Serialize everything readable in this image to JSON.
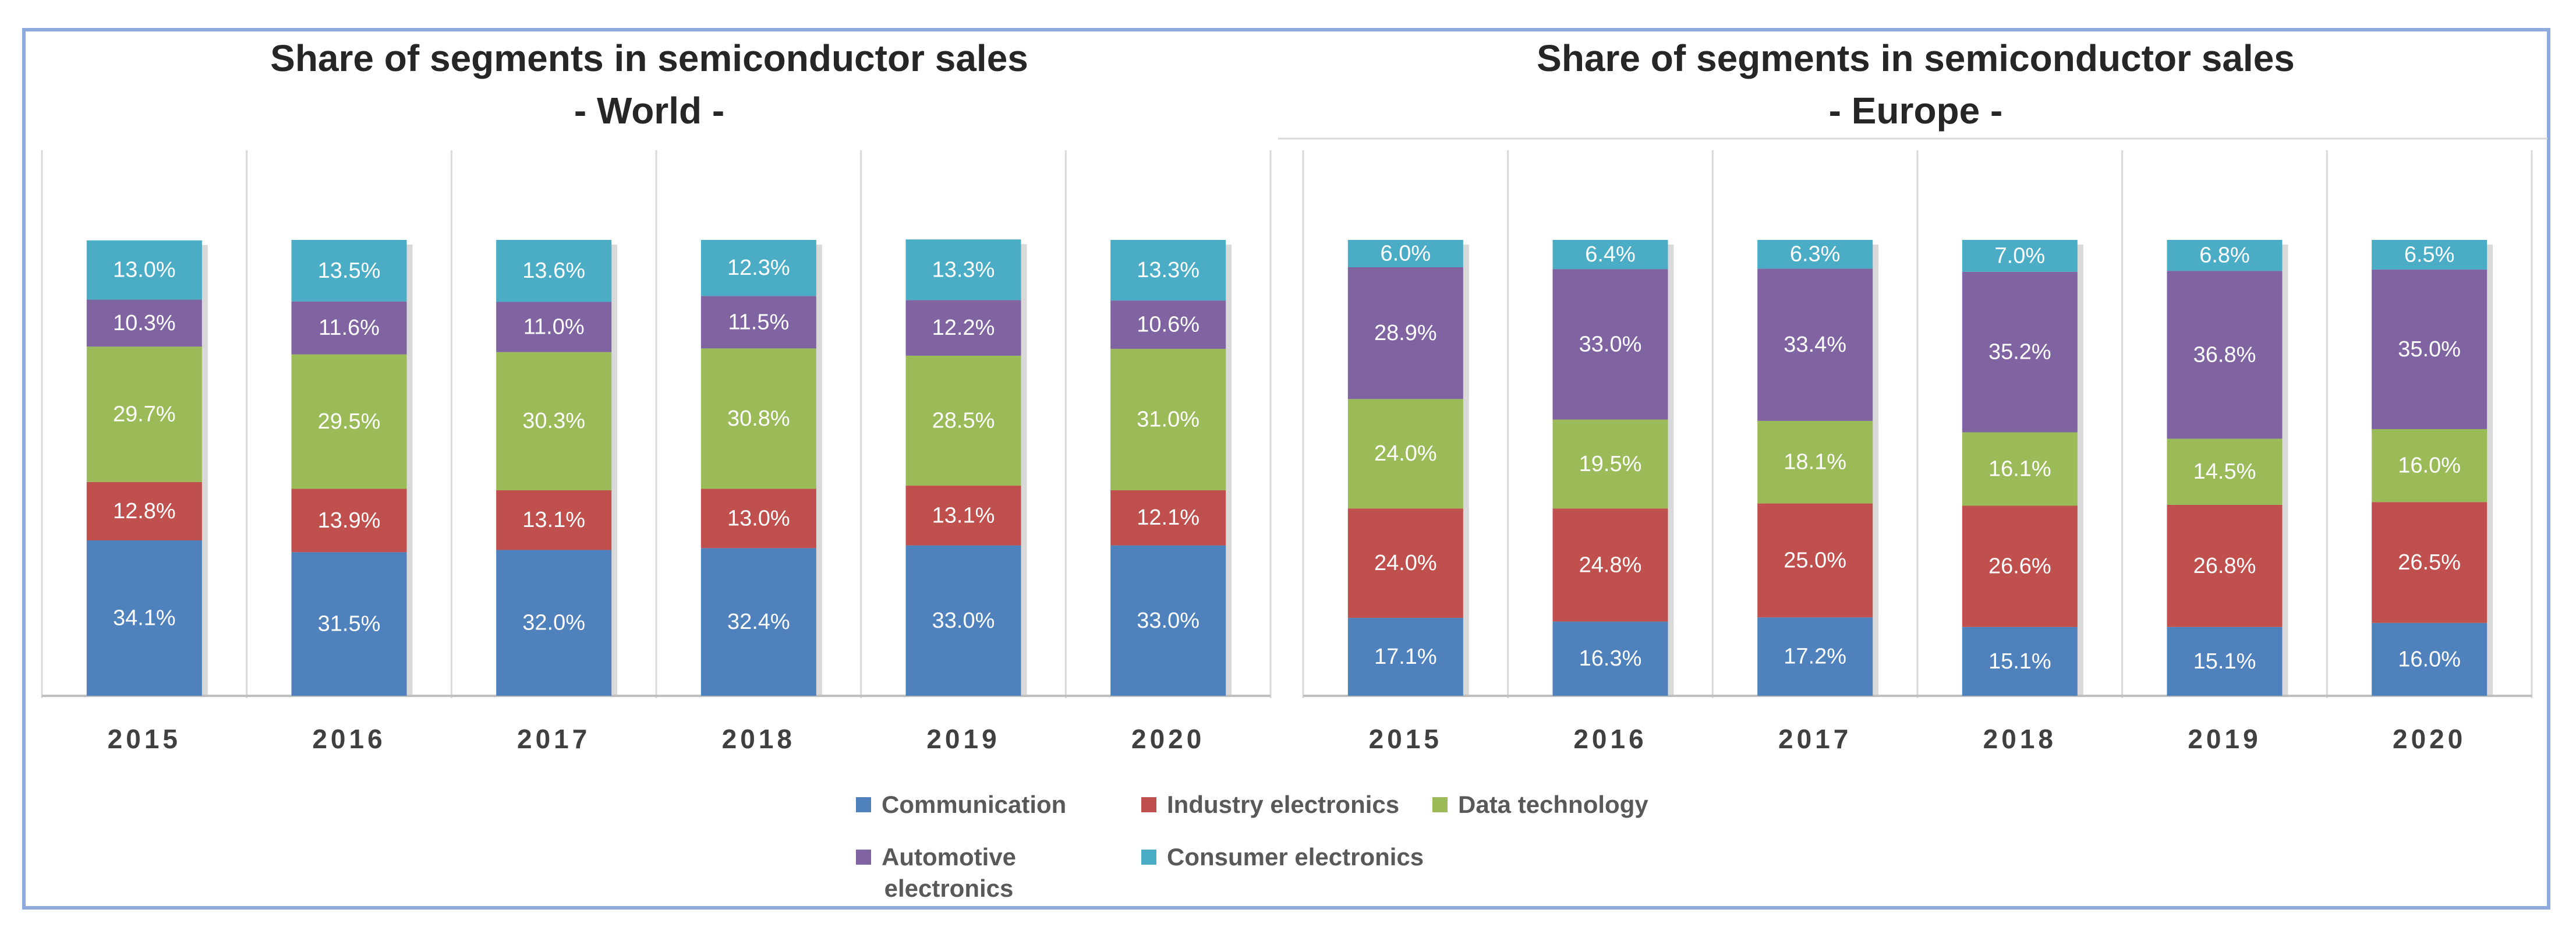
{
  "chart_data": [
    {
      "type": "bar",
      "stacked": true,
      "title": "Share of segments in semiconductor sales",
      "subtitle": "- World -",
      "categories": [
        "2015",
        "2016",
        "2017",
        "2018",
        "2019",
        "2020"
      ],
      "ylim": [
        0,
        100
      ],
      "grid": false,
      "series": [
        {
          "name": "Communication",
          "color": "#4f81bd",
          "values": [
            34.1,
            31.5,
            32.0,
            32.4,
            33.0,
            33.0
          ],
          "labels": [
            "34.1%",
            "31.5%",
            "32.0%",
            "32.4%",
            "33.0%",
            "33.0%"
          ]
        },
        {
          "name": "Industry electronics",
          "color": "#c0504d",
          "values": [
            12.8,
            13.9,
            13.1,
            13.0,
            13.1,
            12.1
          ],
          "labels": [
            "12.8%",
            "13.9%",
            "13.1%",
            "13.0%",
            "13.1%",
            "12.1%"
          ]
        },
        {
          "name": "Data technology",
          "color": "#9bbb59",
          "values": [
            29.7,
            29.5,
            30.3,
            30.8,
            28.5,
            31.0
          ],
          "labels": [
            "29.7%",
            "29.5%",
            "30.3%",
            "30.8%",
            "28.5%",
            "31.0%"
          ]
        },
        {
          "name": "Automotive electronics",
          "color": "#8064a2",
          "values": [
            10.3,
            11.6,
            11.0,
            11.5,
            12.2,
            10.6
          ],
          "labels": [
            "10.3%",
            "11.6%",
            "11.0%",
            "11.5%",
            "12.2%",
            "10.6%"
          ]
        },
        {
          "name": "Consumer electronics",
          "color": "#4bacc6",
          "values": [
            13.0,
            13.5,
            13.6,
            12.3,
            13.3,
            13.3
          ],
          "labels": [
            "13.0%",
            "13.5%",
            "13.6%",
            "12.3%",
            "13.3%",
            "13.3%"
          ]
        }
      ]
    },
    {
      "type": "bar",
      "stacked": true,
      "title": "Share of segments in semiconductor sales",
      "subtitle": "- Europe -",
      "categories": [
        "2015",
        "2016",
        "2017",
        "2018",
        "2019",
        "2020"
      ],
      "ylim": [
        0,
        100
      ],
      "grid": false,
      "series": [
        {
          "name": "Communication",
          "color": "#4f81bd",
          "values": [
            17.1,
            16.3,
            17.2,
            15.1,
            15.1,
            16.0
          ],
          "labels": [
            "17.1%",
            "16.3%",
            "17.2%",
            "15.1%",
            "15.1%",
            "16.0%"
          ]
        },
        {
          "name": "Industry electronics",
          "color": "#c0504d",
          "values": [
            24.0,
            24.8,
            25.0,
            26.6,
            26.8,
            26.5
          ],
          "labels": [
            "24.0%",
            "24.8%",
            "25.0%",
            "26.6%",
            "26.8%",
            "26.5%"
          ]
        },
        {
          "name": "Data technology",
          "color": "#9bbb59",
          "values": [
            24.0,
            19.5,
            18.1,
            16.1,
            14.5,
            16.0
          ],
          "labels": [
            "24.0%",
            "19.5%",
            "18.1%",
            "16.1%",
            "14.5%",
            "16.0%"
          ]
        },
        {
          "name": "Automotive electronics",
          "color": "#8064a2",
          "values": [
            28.9,
            33.0,
            33.4,
            35.2,
            36.8,
            35.0
          ],
          "labels": [
            "28.9%",
            "33.0%",
            "33.4%",
            "35.2%",
            "36.8%",
            "35.0%"
          ]
        },
        {
          "name": "Consumer electronics",
          "color": "#4bacc6",
          "values": [
            6.0,
            6.4,
            6.3,
            7.0,
            6.8,
            6.5
          ],
          "labels": [
            "6.0%",
            "6.4%",
            "6.3%",
            "7.0%",
            "6.8%",
            "6.5%"
          ]
        }
      ]
    }
  ],
  "legend": {
    "placement": "bottom",
    "items": [
      {
        "label": "Communication",
        "color": "#4f81bd"
      },
      {
        "label": "Industry electronics",
        "color": "#c0504d"
      },
      {
        "label": "Data technology",
        "color": "#9bbb59"
      },
      {
        "label": "Automotive\nelectronics",
        "color": "#8064a2"
      },
      {
        "label": "Consumer electronics",
        "color": "#4bacc6"
      }
    ]
  }
}
